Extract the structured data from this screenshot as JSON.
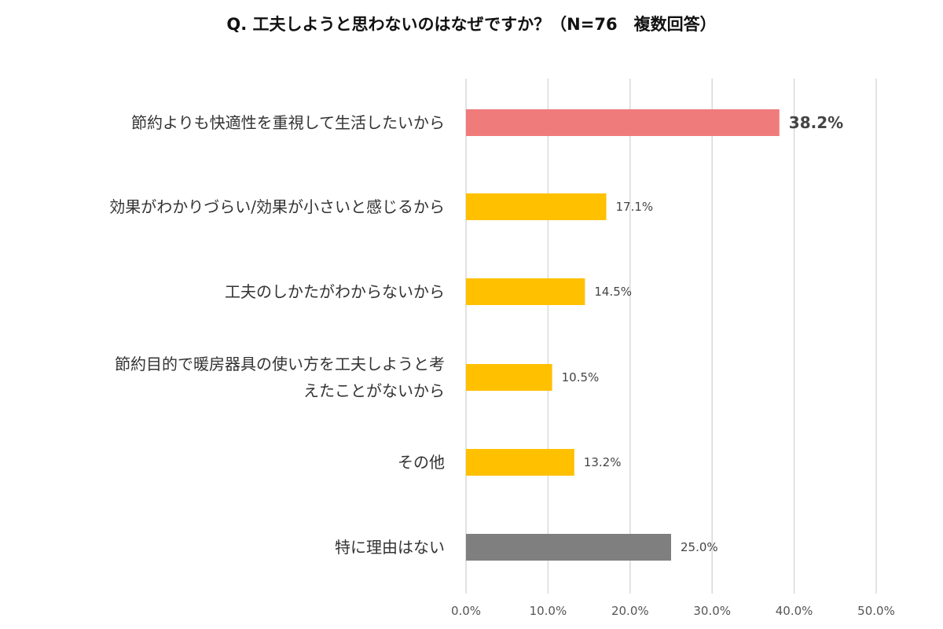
{
  "chart_data": {
    "type": "bar",
    "orientation": "horizontal",
    "title": "Q. 工夫しようと思わないのはなぜですか？（N=76　複数回答）",
    "categories": [
      [
        "節約よりも快適性を重視して生活したいから"
      ],
      [
        "効果がわかりづらい/効果が小さいと感じるから"
      ],
      [
        "工夫のしかたがわからないから"
      ],
      [
        "節約目的で暖房器具の使い方を工夫しようと考",
        "えたことがないから"
      ],
      [
        "その他"
      ],
      [
        "特に理由はない"
      ]
    ],
    "values": [
      38.2,
      17.1,
      14.5,
      10.5,
      13.2,
      25.0
    ],
    "value_labels": [
      "38.2%",
      "17.1%",
      "14.5%",
      "10.5%",
      "13.2%",
      "25.0%"
    ],
    "bar_colors": [
      "#f07b7b",
      "#ffc000",
      "#ffc000",
      "#ffc000",
      "#ffc000",
      "#7f7f7f"
    ],
    "label_colors": [
      "#c00000",
      "#444444",
      "#444444",
      "#444444",
      "#444444",
      "#444444"
    ],
    "highlight_index": 0,
    "xlim": [
      0,
      50
    ],
    "xticks": [
      0,
      10,
      20,
      30,
      40,
      50
    ],
    "xtick_labels": [
      "0.0%",
      "10.0%",
      "20.0%",
      "30.0%",
      "40.0%",
      "50.0%"
    ],
    "grid": true,
    "xlabel": "",
    "ylabel": ""
  }
}
